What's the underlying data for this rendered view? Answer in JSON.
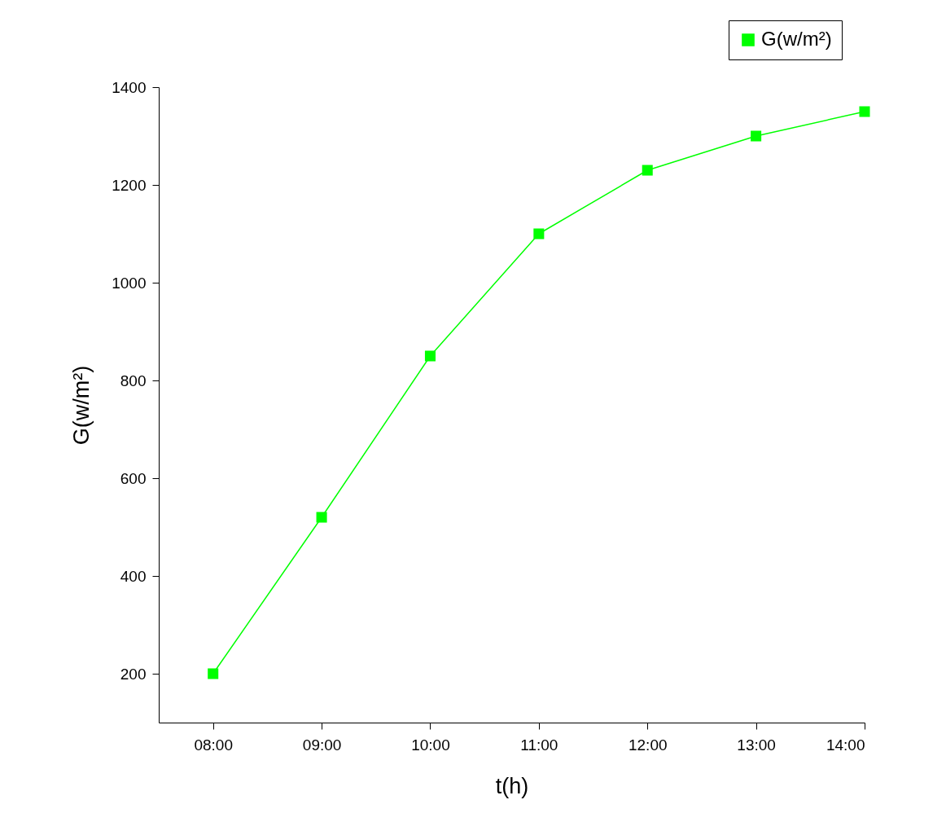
{
  "chart_data": {
    "type": "line",
    "xlabel": "t(h)",
    "ylabel": "G(w/m²)",
    "x": [
      8,
      9,
      10,
      11,
      12,
      13,
      14
    ],
    "series": [
      {
        "name": "G(w/m²)",
        "color": "#00ff00",
        "values": [
          200,
          520,
          850,
          1100,
          1230,
          1300,
          1350
        ]
      }
    ],
    "xlim": [
      7.5,
      14
    ],
    "ylim": [
      100,
      1400
    ],
    "xticks": [
      {
        "value": 8,
        "label": "08:00"
      },
      {
        "value": 9,
        "label": "09:00"
      },
      {
        "value": 10,
        "label": "10:00"
      },
      {
        "value": 11,
        "label": "11:00"
      },
      {
        "value": 12,
        "label": "12:00"
      },
      {
        "value": 13,
        "label": "13:00"
      },
      {
        "value": 14,
        "label": "14:00"
      }
    ],
    "yticks": [
      200,
      400,
      600,
      800,
      1000,
      1200,
      1400
    ],
    "legend": "top right",
    "marker": "square"
  }
}
